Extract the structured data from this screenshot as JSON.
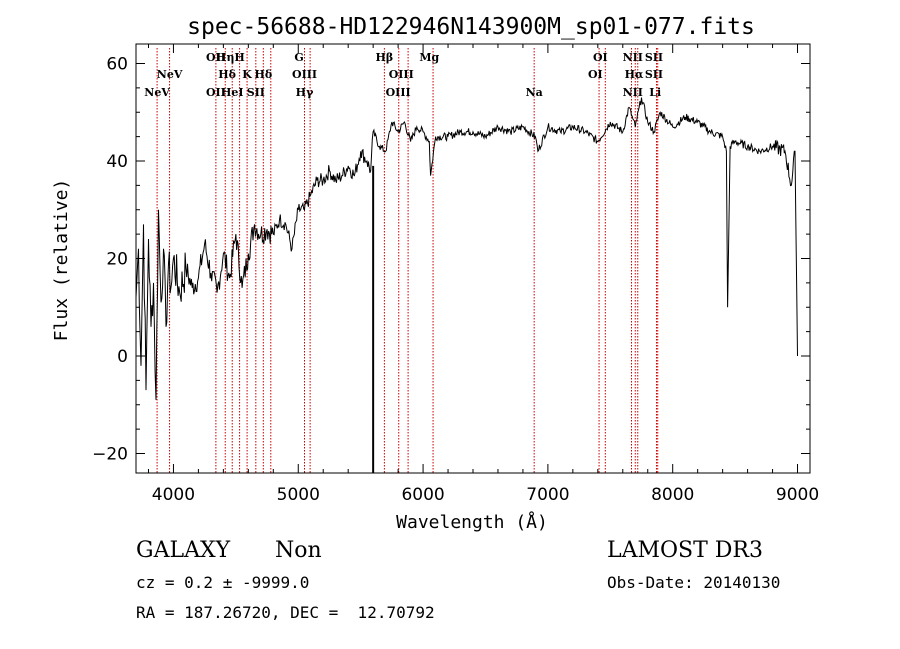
{
  "chart_data": {
    "type": "line",
    "title": "spec-56688-HD122946N143900M_sp01-077.fits",
    "xlabel": "Wavelength (Å)",
    "ylabel": "Flux (relative)",
    "xlim": [
      3700,
      9100
    ],
    "ylim": [
      -24,
      64
    ],
    "xticks": [
      4000,
      5000,
      6000,
      7000,
      8000,
      9000
    ],
    "yticks": [
      -20,
      0,
      20,
      40,
      60
    ],
    "series": [
      {
        "name": "spectrum",
        "x": [
          3700,
          3720,
          3740,
          3760,
          3780,
          3800,
          3820,
          3840,
          3860,
          3880,
          3900,
          3920,
          3940,
          3960,
          3980,
          4000,
          4050,
          4100,
          4150,
          4200,
          4250,
          4300,
          4350,
          4400,
          4450,
          4500,
          4550,
          4600,
          4650,
          4700,
          4750,
          4800,
          4850,
          4900,
          4950,
          5000,
          5050,
          5100,
          5150,
          5200,
          5250,
          5300,
          5350,
          5400,
          5450,
          5500,
          5550,
          5580,
          5600,
          5650,
          5700,
          5750,
          5800,
          5850,
          5900,
          5950,
          6000,
          6050,
          6060,
          6100,
          6200,
          6300,
          6400,
          6500,
          6600,
          6700,
          6800,
          6900,
          6920,
          7000,
          7100,
          7200,
          7300,
          7400,
          7500,
          7600,
          7650,
          7700,
          7750,
          7800,
          7850,
          7900,
          8000,
          8100,
          8200,
          8300,
          8400,
          8430,
          8440,
          8460,
          8500,
          8600,
          8700,
          8800,
          8900,
          8950,
          8980,
          9000
        ],
        "values": [
          12,
          22,
          -2,
          27,
          -7,
          24,
          6,
          15,
          -9,
          30,
          11,
          22,
          6,
          19,
          14,
          20,
          13,
          18,
          14,
          16,
          23,
          17,
          13,
          21,
          16,
          25,
          14,
          21,
          27,
          25,
          26,
          25,
          28,
          27,
          22,
          30,
          30,
          33,
          36,
          36,
          38,
          36,
          37,
          39,
          37,
          42,
          40,
          38,
          46,
          43,
          42,
          48,
          46,
          48,
          44,
          47,
          46,
          44,
          37,
          45,
          45,
          46,
          46,
          45,
          47,
          46,
          47,
          45,
          42,
          47,
          46,
          47,
          46,
          44,
          48,
          46,
          51,
          47,
          53,
          48,
          46,
          50,
          47,
          49,
          48,
          46,
          45,
          42,
          10,
          43,
          44,
          43,
          42,
          43,
          42,
          35,
          42,
          0
        ]
      }
    ],
    "spike": {
      "x": 5600,
      "y_top": 39,
      "y_bottom": -24
    },
    "emission_lines": [
      {
        "x": 3869,
        "label": "NeV",
        "row": 2
      },
      {
        "x": 3969,
        "label": "NeV",
        "row": 1
      },
      {
        "x": 4340,
        "label": "OII",
        "row": 0
      },
      {
        "x": 4340,
        "label": "OII",
        "row": 3
      },
      {
        "x": 4415,
        "label": "Hη",
        "row": 0
      },
      {
        "x": 4430,
        "label": "Hδ",
        "row": 1
      },
      {
        "x": 4471,
        "label": "HeI",
        "row": 3
      },
      {
        "x": 4530,
        "label": "H",
        "row": 0
      },
      {
        "x": 4590,
        "label": "K",
        "row": 1
      },
      {
        "x": 4660,
        "label": "SII",
        "row": 3
      },
      {
        "x": 4720,
        "label": "Hδ",
        "row": 1
      },
      {
        "x": 5007,
        "label": "G",
        "row": 0
      },
      {
        "x": 5050,
        "label": "OIII",
        "row": 1
      },
      {
        "x": 5050,
        "label": "Hγ",
        "row": 3
      },
      {
        "x": 5690,
        "label": "Hβ",
        "row": 0
      },
      {
        "x": 5825,
        "label": "OIII",
        "row": 1
      },
      {
        "x": 5800,
        "label": "OIII",
        "row": 3
      },
      {
        "x": 6050,
        "label": "Mg",
        "row": 0
      },
      {
        "x": 6890,
        "label": "Na",
        "row": 3
      },
      {
        "x": 7420,
        "label": "OI",
        "row": 0
      },
      {
        "x": 7380,
        "label": "OI",
        "row": 1
      },
      {
        "x": 7680,
        "label": "NII",
        "row": 0
      },
      {
        "x": 7690,
        "label": "Hα",
        "row": 1
      },
      {
        "x": 7680,
        "label": "NII",
        "row": 3
      },
      {
        "x": 7850,
        "label": "SII",
        "row": 0
      },
      {
        "x": 7850,
        "label": "SII",
        "row": 1
      },
      {
        "x": 7860,
        "label": "Li",
        "row": 3
      }
    ],
    "line_markers": [
      3869,
      3969,
      4340,
      4415,
      4471,
      4530,
      4590,
      4660,
      4720,
      4780,
      5050,
      5095,
      5690,
      5805,
      5880,
      6080,
      6890,
      7410,
      7460,
      7670,
      7700,
      7720,
      7870,
      7880
    ],
    "line_marker_color": "#cc0000"
  },
  "footer": {
    "object_class": "GALAXY",
    "subclass": "Non",
    "redshift": "cz = 0.2 ± -9999.0",
    "coords": "RA = 187.26720, DEC =  12.70792",
    "survey": "LAMOST DR3",
    "obs_date": "Obs-Date: 20140130"
  }
}
